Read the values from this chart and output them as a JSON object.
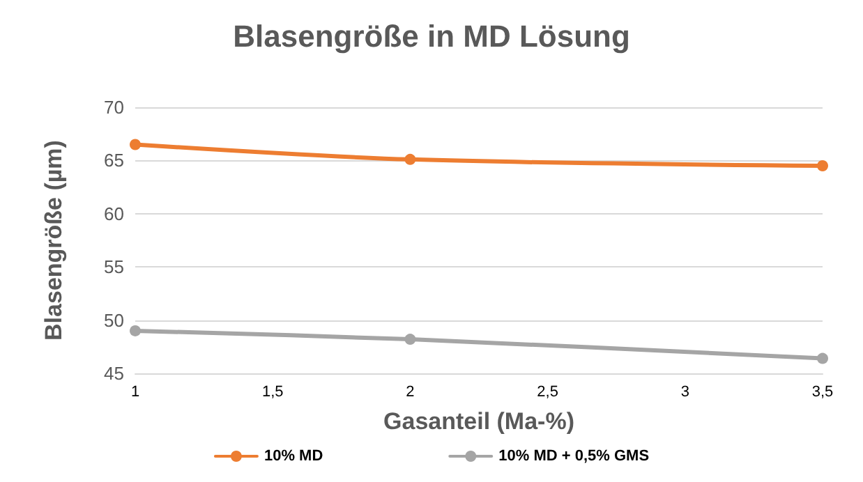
{
  "chart_data": {
    "type": "line",
    "title": "Blasengröße in MD Lösung",
    "xlabel": "Gasanteil (Ma-%)",
    "ylabel": "Blasengröße (µm)",
    "x": [
      1,
      2,
      3.5
    ],
    "series": [
      {
        "name": "10% MD",
        "color": "#ed7d31",
        "values": [
          66.5,
          65.1,
          64.5
        ]
      },
      {
        "name": "10% MD + 0,5% GMS",
        "color": "#a5a5a5",
        "values": [
          49,
          48.2,
          46.4
        ]
      }
    ],
    "xlim": [
      1,
      3.5
    ],
    "xticks": [
      1,
      {
        "value": 1.5,
        "label": "1,5"
      },
      2,
      {
        "value": 2.5,
        "label": "2,5"
      },
      3,
      {
        "value": 3.5,
        "label": "3,5"
      }
    ],
    "ylim": [
      45,
      70
    ],
    "yticks": [
      45,
      50,
      55,
      60,
      65,
      70
    ],
    "grid": "y",
    "legend": "bottom",
    "marker": "circle",
    "line_style": "solid"
  }
}
